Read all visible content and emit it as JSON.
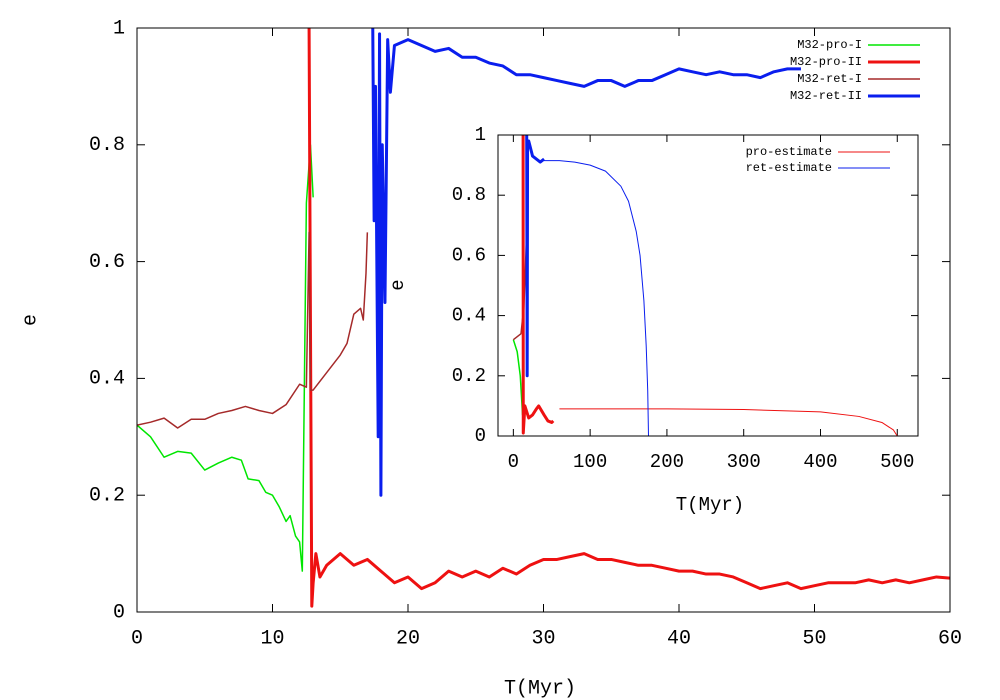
{
  "chart_data": [
    {
      "type": "line",
      "xlabel": "T(Myr)",
      "ylabel": "e",
      "xlim": [
        0,
        60
      ],
      "ylim": [
        0,
        1
      ],
      "xticks": [
        0,
        10,
        20,
        30,
        40,
        50,
        60
      ],
      "yticks": [
        0,
        0.2,
        0.4,
        0.6,
        0.8,
        1
      ],
      "legend": "top-right",
      "series": [
        {
          "name": "M32-pro-I",
          "color": "#00e600",
          "x": [
            0,
            1,
            2,
            3,
            4,
            5,
            6,
            7,
            7.7,
            8.2,
            9,
            9.5,
            10,
            10.5,
            11,
            11.3,
            11.7,
            12,
            12.2,
            12.5,
            12.8,
            13
          ],
          "values": [
            0.32,
            0.3,
            0.265,
            0.275,
            0.272,
            0.243,
            0.255,
            0.265,
            0.26,
            0.228,
            0.225,
            0.205,
            0.2,
            0.18,
            0.155,
            0.165,
            0.13,
            0.12,
            0.07,
            0.7,
            0.8,
            0.71
          ]
        },
        {
          "name": "M32-pro-II",
          "color": "#ee1111",
          "x": [
            12.7,
            12.8,
            12.9,
            13,
            13.2,
            13.5,
            14,
            15,
            16,
            17,
            18,
            19,
            20,
            21,
            22,
            23,
            24,
            25,
            26,
            27,
            28,
            29,
            30,
            31,
            32,
            33,
            34,
            35,
            36,
            37,
            38,
            39,
            40,
            41,
            42,
            43,
            44,
            45,
            46,
            47,
            48,
            49,
            50,
            51,
            52,
            53,
            54,
            55,
            56,
            57,
            58,
            59,
            60
          ],
          "values": [
            1,
            0.5,
            0.01,
            0.05,
            0.1,
            0.06,
            0.08,
            0.1,
            0.08,
            0.09,
            0.07,
            0.05,
            0.06,
            0.04,
            0.05,
            0.07,
            0.06,
            0.07,
            0.06,
            0.075,
            0.065,
            0.08,
            0.09,
            0.09,
            0.095,
            0.1,
            0.09,
            0.09,
            0.085,
            0.08,
            0.08,
            0.075,
            0.07,
            0.07,
            0.065,
            0.065,
            0.06,
            0.05,
            0.04,
            0.045,
            0.05,
            0.04,
            0.045,
            0.05,
            0.05,
            0.05,
            0.055,
            0.05,
            0.055,
            0.05,
            0.055,
            0.06,
            0.058
          ]
        },
        {
          "name": "M32-ret-I",
          "color": "#a52a2a",
          "x": [
            0,
            1,
            2,
            3,
            4,
            5,
            6,
            7,
            8,
            9,
            10,
            11,
            12,
            12.5,
            12.7,
            12.8,
            13,
            14,
            15,
            15.5,
            16,
            16.5,
            16.7,
            16.9,
            17
          ],
          "values": [
            0.32,
            0.325,
            0.332,
            0.315,
            0.33,
            0.33,
            0.34,
            0.345,
            0.352,
            0.345,
            0.34,
            0.355,
            0.39,
            0.385,
            0.65,
            0.38,
            0.38,
            0.41,
            0.44,
            0.46,
            0.51,
            0.52,
            0.5,
            0.58,
            0.65
          ]
        },
        {
          "name": "M32-ret-II",
          "color": "#0a1eee",
          "x": [
            17.4,
            17.5,
            17.6,
            17.8,
            17.9,
            18,
            18.1,
            18.3,
            18.5,
            18.7,
            19,
            20,
            21,
            22,
            23,
            24,
            25,
            26,
            27,
            28,
            29,
            30,
            31,
            32,
            33,
            34,
            35,
            36,
            37,
            38,
            39,
            40,
            41,
            42,
            43,
            44,
            45,
            46,
            47,
            48,
            49
          ],
          "values": [
            1,
            0.67,
            0.9,
            0.3,
            0.99,
            0.2,
            0.8,
            0.53,
            0.98,
            0.89,
            0.97,
            0.98,
            0.97,
            0.96,
            0.965,
            0.95,
            0.95,
            0.94,
            0.935,
            0.92,
            0.92,
            0.915,
            0.91,
            0.905,
            0.9,
            0.91,
            0.91,
            0.9,
            0.91,
            0.91,
            0.92,
            0.93,
            0.925,
            0.92,
            0.925,
            0.92,
            0.92,
            0.915,
            0.925,
            0.93,
            0.93
          ]
        }
      ]
    },
    {
      "type": "line",
      "xlabel": "T(Myr)",
      "ylabel": "e",
      "xlim": [
        -20,
        527
      ],
      "ylim": [
        0,
        1
      ],
      "xticks": [
        0,
        100,
        200,
        300,
        400,
        500
      ],
      "yticks": [
        0,
        0.2,
        0.4,
        0.6,
        0.8,
        1
      ],
      "legend": "top-right",
      "series": [
        {
          "color": "#00e600",
          "x": [
            0,
            5,
            9,
            12,
            13,
            13
          ],
          "values": [
            0.32,
            0.28,
            0.2,
            0.07,
            0.78,
            0.7
          ]
        },
        {
          "color": "#a52a2a",
          "x": [
            0,
            5,
            10,
            12,
            13,
            17
          ],
          "values": [
            0.32,
            0.33,
            0.34,
            0.39,
            0.38,
            0.65
          ]
        },
        {
          "color": "#0a1eee",
          "x": [
            17.4,
            18,
            18.5,
            20,
            25,
            30,
            35,
            40
          ],
          "values": [
            1,
            0.2,
            0.98,
            0.98,
            0.93,
            0.92,
            0.91,
            0.92
          ]
        },
        {
          "color": "#ee1111",
          "x": [
            12.7,
            12.9,
            15,
            20,
            25,
            30,
            33,
            40,
            45,
            50,
            52
          ],
          "values": [
            1,
            0.01,
            0.1,
            0.06,
            0.07,
            0.09,
            0.1,
            0.07,
            0.05,
            0.045,
            0.05
          ]
        },
        {
          "name": "pro-estimate",
          "color": "#ee1111",
          "x": [
            60,
            100,
            200,
            300,
            400,
            450,
            480,
            495,
            500
          ],
          "values": [
            0.09,
            0.09,
            0.09,
            0.088,
            0.08,
            0.065,
            0.045,
            0.02,
            0
          ]
        },
        {
          "name": "ret-estimate",
          "color": "#0a1eee",
          "x": [
            40,
            60,
            80,
            100,
            120,
            140,
            150,
            160,
            165,
            170,
            173,
            175,
            176
          ],
          "values": [
            0.915,
            0.915,
            0.91,
            0.9,
            0.88,
            0.83,
            0.78,
            0.68,
            0.6,
            0.45,
            0.3,
            0.15,
            0
          ]
        }
      ]
    }
  ]
}
